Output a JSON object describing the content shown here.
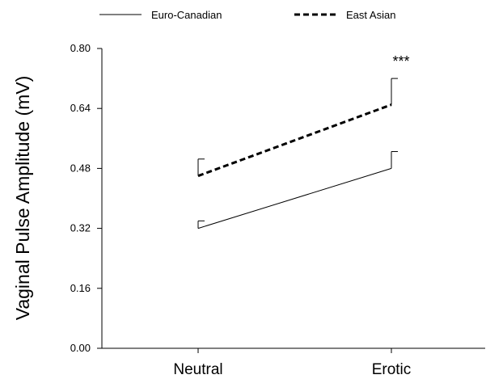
{
  "chart_data": {
    "type": "line",
    "ylabel": "Vaginal Pulse Amplitude (mV)",
    "xlabel": "",
    "categories": [
      "Neutral",
      "Erotic"
    ],
    "ylim": [
      0,
      0.8
    ],
    "yticks": [
      "0.00",
      "0.16",
      "0.32",
      "0.48",
      "0.64",
      "0.80"
    ],
    "series": [
      {
        "name": "Euro-Canadian",
        "style": "solid",
        "values": [
          0.32,
          0.48
        ],
        "error": [
          0.02,
          0.045
        ]
      },
      {
        "name": "East Asian",
        "style": "dashed",
        "values": [
          0.46,
          0.65
        ],
        "error": [
          0.045,
          0.07
        ]
      }
    ],
    "annotations": [
      {
        "text": "***",
        "category": "Erotic"
      }
    ],
    "legend_position": "top-left",
    "grid": false
  }
}
